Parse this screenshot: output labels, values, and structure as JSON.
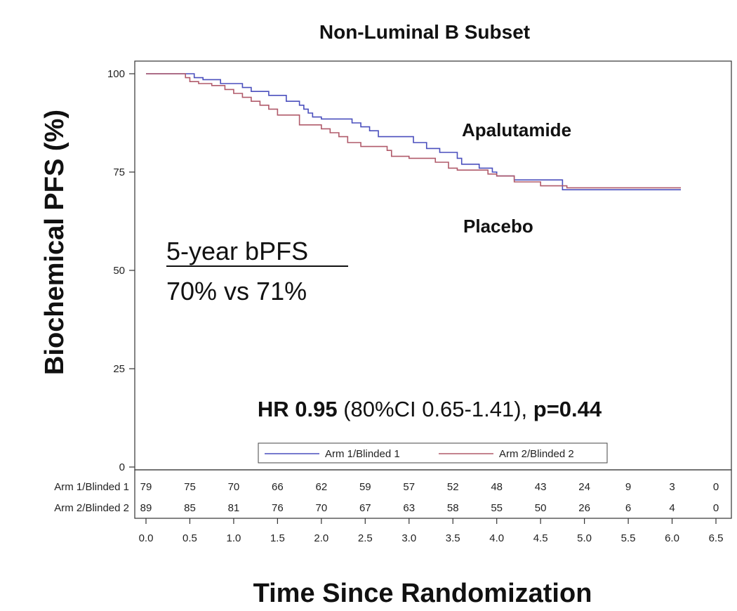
{
  "chart_data": {
    "type": "line",
    "title": "Non-Luminal B Subset",
    "xlabel": "Time Since Randomization",
    "ylabel": "Biochemical PFS (%)",
    "xlim": [
      0,
      6.5
    ],
    "ylim": [
      0,
      100
    ],
    "x_ticks": [
      "0.0",
      "0.5",
      "1.0",
      "1.5",
      "2.0",
      "2.5",
      "3.0",
      "3.5",
      "4.0",
      "4.5",
      "5.0",
      "5.5",
      "6.0",
      "6.5"
    ],
    "y_ticks": [
      "0",
      "25",
      "50",
      "75",
      "100"
    ],
    "grid": false,
    "legend_position": "bottom-center",
    "series": [
      {
        "name": "Arm 1/Blinded 1",
        "color": "#4a4fbd",
        "x": [
          0,
          0.55,
          0.65,
          0.85,
          1.1,
          1.2,
          1.4,
          1.6,
          1.75,
          1.8,
          1.85,
          1.9,
          2.0,
          2.3,
          2.35,
          2.45,
          2.55,
          2.65,
          2.8,
          3.05,
          3.2,
          3.3,
          3.35,
          3.55,
          3.6,
          3.8,
          3.95,
          4.0,
          4.2,
          4.75,
          6.1
        ],
        "y": [
          100,
          99,
          98.5,
          97.5,
          96.5,
          95.5,
          94.5,
          93,
          92,
          91,
          90,
          89,
          88.5,
          88.5,
          87.5,
          86.5,
          85.5,
          84,
          84,
          82.5,
          81,
          81,
          80,
          78.5,
          77,
          76,
          75,
          74,
          73,
          70.5,
          70.5
        ]
      },
      {
        "name": "Arm 2/Blinded 2",
        "color": "#b05a6a",
        "x": [
          0,
          0.45,
          0.5,
          0.6,
          0.75,
          0.9,
          1.0,
          1.1,
          1.2,
          1.3,
          1.4,
          1.5,
          1.55,
          1.75,
          1.85,
          2.0,
          2.1,
          2.2,
          2.3,
          2.45,
          2.75,
          2.8,
          3.0,
          3.3,
          3.35,
          3.45,
          3.55,
          3.9,
          4.0,
          4.2,
          4.5,
          4.8,
          6.1
        ],
        "y": [
          100,
          99,
          98,
          97.5,
          97,
          96,
          95,
          94,
          93,
          92,
          91,
          89.5,
          89.5,
          87,
          87,
          86,
          85,
          84,
          82.5,
          81.5,
          80.5,
          79,
          78.5,
          77.5,
          77.5,
          76,
          75.5,
          74.5,
          74,
          72.5,
          71.5,
          71,
          71
        ]
      }
    ],
    "annotations": {
      "arm1_label": "Apalutamide",
      "arm2_label": "Placebo",
      "bpfs_heading": "5-year bPFS",
      "bpfs_values": "70% vs 71%",
      "hr_label": "HR",
      "hr_value": "0.95",
      "hr_ci": "(80%CI 0.65-1.41),",
      "p_value": "p=0.44"
    },
    "risk_table": {
      "rows": [
        {
          "label": "Arm 1/Blinded 1",
          "values": [
            "79",
            "75",
            "70",
            "66",
            "62",
            "59",
            "57",
            "52",
            "48",
            "43",
            "24",
            "9",
            "3",
            "0"
          ]
        },
        {
          "label": "Arm 2/Blinded 2",
          "values": [
            "89",
            "85",
            "81",
            "76",
            "70",
            "67",
            "63",
            "58",
            "55",
            "50",
            "26",
            "6",
            "4",
            "0"
          ]
        }
      ]
    }
  }
}
